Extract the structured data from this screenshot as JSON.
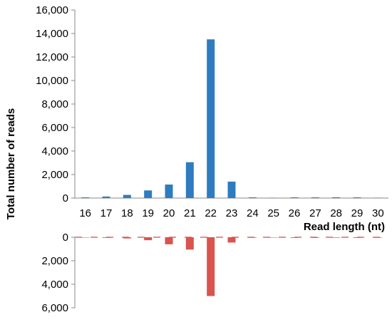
{
  "chart_data": {
    "type": "bar",
    "xlabel": "Read length (nt)",
    "ylabel": "Total number of reads",
    "categories": [
      "16",
      "17",
      "18",
      "19",
      "20",
      "21",
      "22",
      "23",
      "24",
      "25",
      "26",
      "27",
      "28",
      "29",
      "30"
    ],
    "series": [
      {
        "values": [
          60,
          130,
          270,
          650,
          1150,
          3050,
          13500,
          1400,
          60,
          20,
          60,
          60,
          70,
          60,
          30
        ],
        "color": "#2e7cbf"
      },
      {
        "values": [
          30,
          50,
          100,
          250,
          600,
          1050,
          5000,
          450,
          40,
          30,
          50,
          50,
          40,
          50,
          40
        ],
        "color": "#d9534f"
      }
    ],
    "top_panel": {
      "ylim": [
        0,
        16000
      ],
      "ticks": [
        "0",
        "2,000",
        "4,000",
        "6,000",
        "8,000",
        "10,000",
        "12,000",
        "14,000",
        "16,000"
      ]
    },
    "bottom_panel": {
      "ylim": [
        0,
        6000
      ],
      "reversed": true,
      "ticks": [
        "0",
        "2,000",
        "4,000",
        "6,000"
      ]
    },
    "grid": false,
    "legend": "none"
  }
}
